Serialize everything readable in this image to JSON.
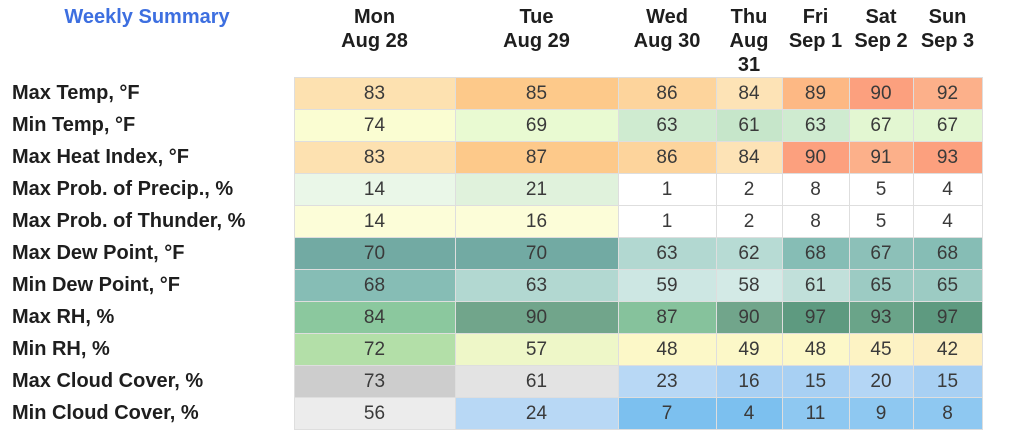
{
  "title": "Weekly Summary",
  "days": [
    {
      "day": "Mon",
      "date": "Aug 28"
    },
    {
      "day": "Tue",
      "date": "Aug 29"
    },
    {
      "day": "Wed",
      "date": "Aug 30"
    },
    {
      "day": "Thu",
      "date": "Aug 31"
    },
    {
      "day": "Fri",
      "date": "Sep 1"
    },
    {
      "day": "Sat",
      "date": "Sep 2"
    },
    {
      "day": "Sun",
      "date": "Sep 3"
    }
  ],
  "rows": [
    {
      "label": "Max Temp, °F",
      "values": [
        "83",
        "85",
        "86",
        "84",
        "89",
        "90",
        "92"
      ],
      "colors": [
        "#fde1b0",
        "#fdc98a",
        "#fdd49c",
        "#fde3b6",
        "#fdb884",
        "#fca07e",
        "#fcb08a"
      ]
    },
    {
      "label": "Min Temp, °F",
      "values": [
        "74",
        "69",
        "63",
        "61",
        "63",
        "67",
        "67"
      ],
      "colors": [
        "#fafdd2",
        "#e9fad2",
        "#cfebd0",
        "#c6e6ca",
        "#cfebd0",
        "#e3f7d2",
        "#e3f7d2"
      ]
    },
    {
      "label": "Max Heat Index, °F",
      "values": [
        "83",
        "87",
        "86",
        "84",
        "90",
        "91",
        "93"
      ],
      "colors": [
        "#fde1b0",
        "#fdc98a",
        "#fdd49c",
        "#fde3b6",
        "#fca07e",
        "#fcb08a",
        "#fca07e"
      ]
    },
    {
      "label": "Max Prob. of Precip., %",
      "values": [
        "14",
        "21",
        "1",
        "2",
        "8",
        "5",
        "4"
      ],
      "colors": [
        "#eaf7e8",
        "#e0f2dc",
        "#ffffff",
        "#ffffff",
        "#ffffff",
        "#ffffff",
        "#ffffff"
      ]
    },
    {
      "label": "Max Prob. of Thunder, %",
      "values": [
        "14",
        "16",
        "1",
        "2",
        "8",
        "5",
        "4"
      ],
      "colors": [
        "#fcfdd8",
        "#fcfdd8",
        "#ffffff",
        "#ffffff",
        "#ffffff",
        "#ffffff",
        "#ffffff"
      ]
    },
    {
      "label": "Max Dew Point, °F",
      "values": [
        "70",
        "70",
        "63",
        "62",
        "68",
        "67",
        "68"
      ],
      "colors": [
        "#72aaa3",
        "#72aaa3",
        "#b2d8d1",
        "#b7dbd4",
        "#86bdb5",
        "#8cc0b8",
        "#86bdb5"
      ]
    },
    {
      "label": "Min Dew Point, °F",
      "values": [
        "68",
        "63",
        "59",
        "58",
        "61",
        "65",
        "65"
      ],
      "colors": [
        "#86bdb5",
        "#b2d8d1",
        "#cde7e3",
        "#d3eae6",
        "#c1e0da",
        "#9ccbc3",
        "#9ccbc3"
      ]
    },
    {
      "label": "Max RH, %",
      "values": [
        "84",
        "90",
        "87",
        "90",
        "97",
        "93",
        "97"
      ],
      "colors": [
        "#8bc89e",
        "#71a58b",
        "#86c29c",
        "#71a58b",
        "#5e9a80",
        "#6aa489",
        "#5e9a80"
      ]
    },
    {
      "label": "Min RH, %",
      "values": [
        "72",
        "57",
        "48",
        "49",
        "48",
        "45",
        "42"
      ],
      "colors": [
        "#b3dfa8",
        "#eef7c8",
        "#fcf8c8",
        "#fcf8c8",
        "#fcf8c8",
        "#fdf3c4",
        "#fdefc2"
      ]
    },
    {
      "label": "Max Cloud Cover, %",
      "values": [
        "73",
        "61",
        "23",
        "16",
        "15",
        "20",
        "15"
      ],
      "colors": [
        "#cdcdcd",
        "#e3e3e3",
        "#b8d8f5",
        "#a8d0f3",
        "#a8d0f3",
        "#b4d6f5",
        "#a8d0f3"
      ]
    },
    {
      "label": "Min Cloud Cover, %",
      "values": [
        "56",
        "24",
        "7",
        "4",
        "11",
        "9",
        "8"
      ],
      "colors": [
        "#ececec",
        "#b8d8f5",
        "#7cc0ef",
        "#7cc0ef",
        "#8ec8f1",
        "#8ec8f1",
        "#8ec8f1"
      ]
    }
  ]
}
